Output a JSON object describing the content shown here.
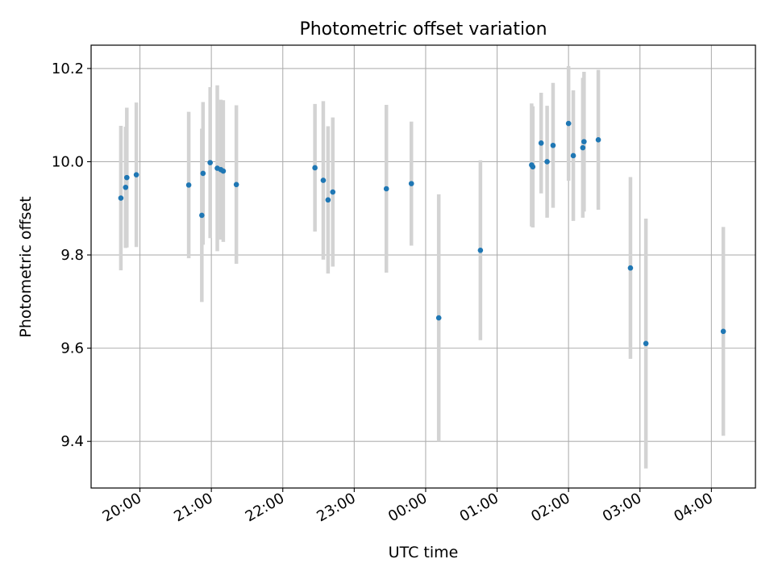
{
  "chart_data": {
    "type": "scatter",
    "title": "Photometric offset variation",
    "xlabel": "UTC time",
    "ylabel": "Photometric offset",
    "xlim": [
      "19:19",
      "04:37"
    ],
    "ylim": [
      9.3,
      10.25
    ],
    "xticks": [
      "20:00",
      "21:00",
      "22:00",
      "23:00",
      "00:00",
      "01:00",
      "02:00",
      "03:00",
      "04:00"
    ],
    "yticks": [
      "9.4",
      "9.6",
      "9.8",
      "10.0",
      "10.2"
    ],
    "grid": true,
    "colors": {
      "point": "#1f77b4",
      "errorbar": "#d3d3d3",
      "grid": "#b0b0b0"
    },
    "points": [
      {
        "x": "19:44",
        "y": 9.922,
        "err": 0.155
      },
      {
        "x": "19:48",
        "y": 9.945,
        "err": 0.13
      },
      {
        "x": "19:49",
        "y": 9.966,
        "err": 0.15
      },
      {
        "x": "19:57",
        "y": 9.972,
        "err": 0.155
      },
      {
        "x": "20:41",
        "y": 9.95,
        "err": 0.157
      },
      {
        "x": "20:52",
        "y": 9.885,
        "err": 0.186
      },
      {
        "x": "20:53",
        "y": 9.975,
        "err": 0.153
      },
      {
        "x": "20:59",
        "y": 9.998,
        "err": 0.162
      },
      {
        "x": "21:05",
        "y": 9.986,
        "err": 0.178
      },
      {
        "x": "21:08",
        "y": 9.983,
        "err": 0.15
      },
      {
        "x": "21:10",
        "y": 9.98,
        "err": 0.152
      },
      {
        "x": "21:21",
        "y": 9.951,
        "err": 0.17
      },
      {
        "x": "22:27",
        "y": 9.987,
        "err": 0.137
      },
      {
        "x": "22:34",
        "y": 9.96,
        "err": 0.17
      },
      {
        "x": "22:38",
        "y": 9.918,
        "err": 0.158
      },
      {
        "x": "22:42",
        "y": 9.935,
        "err": 0.16
      },
      {
        "x": "23:27",
        "y": 9.942,
        "err": 0.18
      },
      {
        "x": "23:48",
        "y": 9.953,
        "err": 0.133
      },
      {
        "x": "00:11",
        "y": 9.665,
        "err": 0.265
      },
      {
        "x": "00:46",
        "y": 9.81,
        "err": 0.193
      },
      {
        "x": "01:29",
        "y": 9.993,
        "err": 0.132
      },
      {
        "x": "01:30",
        "y": 9.989,
        "err": 0.13
      },
      {
        "x": "01:37",
        "y": 10.04,
        "err": 0.108
      },
      {
        "x": "01:42",
        "y": 10.0,
        "err": 0.12
      },
      {
        "x": "01:47",
        "y": 10.035,
        "err": 0.134
      },
      {
        "x": "02:00",
        "y": 10.082,
        "err": 0.123
      },
      {
        "x": "02:04",
        "y": 10.013,
        "err": 0.14
      },
      {
        "x": "02:12",
        "y": 10.03,
        "err": 0.15
      },
      {
        "x": "02:13",
        "y": 10.043,
        "err": 0.15
      },
      {
        "x": "02:25",
        "y": 10.047,
        "err": 0.15
      },
      {
        "x": "02:52",
        "y": 9.772,
        "err": 0.195
      },
      {
        "x": "03:05",
        "y": 9.61,
        "err": 0.268
      },
      {
        "x": "04:10",
        "y": 9.636,
        "err": 0.224
      }
    ]
  }
}
